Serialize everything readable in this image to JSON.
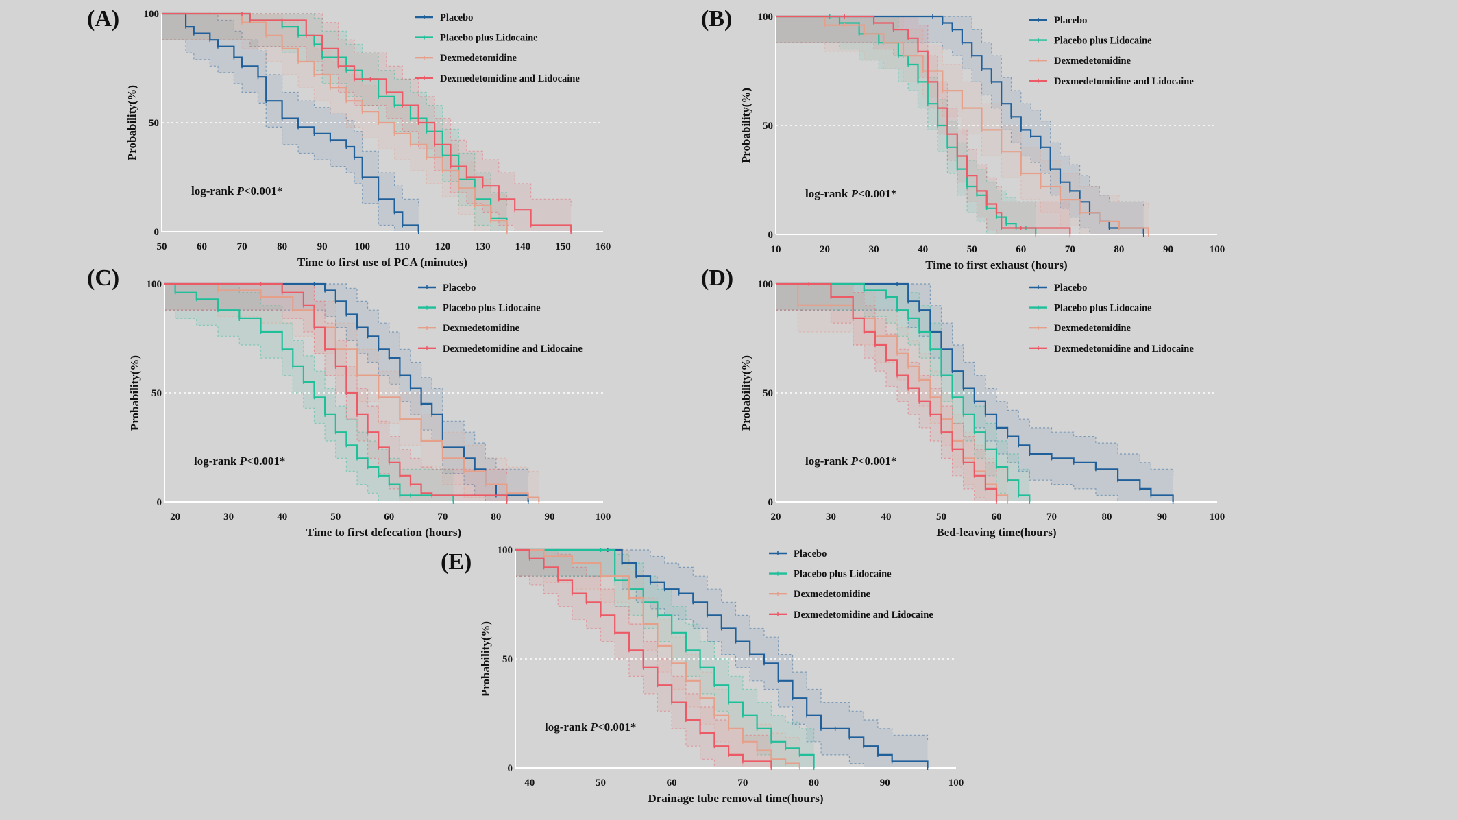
{
  "colors": {
    "background": "#d4d4d4",
    "axis": "#ffffff",
    "grid": "#ffffff",
    "Placebo": "#1f5f9a",
    "Placebo plus Lidocaine": "#1fbf9a",
    "Dexmedetomidine": "#e6a08a",
    "Dexmedetomidine and Lidocaine": "#ec5a66"
  },
  "chart_data": [
    {
      "type": "line",
      "panel": "(A)",
      "xlabel": "Time to first use of PCA (minutes)",
      "ylabel": "Probability(%)",
      "xlim": [
        50,
        160
      ],
      "xticks": [
        50,
        60,
        70,
        80,
        90,
        100,
        110,
        120,
        130,
        140,
        150,
        160
      ],
      "ylim": [
        0,
        100
      ],
      "yticks": [
        0,
        50,
        100
      ],
      "annotation": {
        "prefix": "log-rank ",
        "italic": "P",
        "suffix": "<0.001*"
      },
      "legend": [
        "Placebo",
        "Placebo plus Lidocaine",
        "Dexmedetomidine",
        "Dexmedetomidine and Lidocaine"
      ],
      "series": [
        {
          "name": "Placebo",
          "x": [
            50,
            56,
            58,
            62,
            64,
            68,
            70,
            74,
            76,
            80,
            84,
            88,
            92,
            96,
            98,
            100,
            104,
            108,
            110,
            114
          ],
          "y": [
            100,
            94,
            91,
            88,
            85,
            80,
            76,
            71,
            60,
            52,
            48,
            45,
            42,
            39,
            34,
            25,
            15,
            9,
            3,
            0
          ]
        },
        {
          "name": "Placebo plus Lidocaine",
          "x": [
            50,
            70,
            72,
            80,
            84,
            88,
            90,
            96,
            100,
            104,
            108,
            112,
            116,
            120,
            124,
            128,
            132,
            136
          ],
          "y": [
            100,
            100,
            97,
            94,
            90,
            86,
            80,
            74,
            70,
            62,
            58,
            52,
            46,
            35,
            24,
            15,
            6,
            0
          ]
        },
        {
          "name": "Dexmedetomidine",
          "x": [
            50,
            62,
            70,
            76,
            80,
            84,
            88,
            92,
            96,
            100,
            104,
            108,
            112,
            116,
            120,
            124,
            128,
            132,
            136
          ],
          "y": [
            100,
            100,
            96,
            90,
            84,
            78,
            72,
            66,
            60,
            55,
            50,
            45,
            40,
            34,
            28,
            20,
            12,
            5,
            0
          ]
        },
        {
          "name": "Dexmedetomidine and Lidocaine",
          "x": [
            50,
            70,
            72,
            80,
            86,
            90,
            94,
            98,
            102,
            106,
            110,
            114,
            118,
            122,
            126,
            130,
            134,
            138,
            142,
            152
          ],
          "y": [
            100,
            100,
            97,
            97,
            90,
            84,
            76,
            70,
            70,
            64,
            58,
            50,
            40,
            30,
            25,
            21,
            15,
            10,
            3,
            0
          ]
        }
      ]
    },
    {
      "type": "line",
      "panel": "(B)",
      "xlabel": "Time to first exhaust (hours)",
      "ylabel": "Probability(%)",
      "xlim": [
        10,
        100
      ],
      "xticks": [
        10,
        20,
        30,
        40,
        50,
        60,
        70,
        80,
        90,
        100
      ],
      "ylim": [
        0,
        100
      ],
      "yticks": [
        0,
        50,
        100
      ],
      "annotation": {
        "prefix": "log-rank ",
        "italic": "P",
        "suffix": "<0.001*"
      },
      "legend": [
        "Placebo",
        "Placebo plus Lidocaine",
        "Dexmedetomidine",
        "Dexmedetomidine and Lidocaine"
      ],
      "series": [
        {
          "name": "Placebo",
          "x": [
            10,
            42,
            44,
            46,
            48,
            50,
            52,
            54,
            56,
            58,
            60,
            62,
            64,
            66,
            68,
            70,
            72,
            74,
            76,
            78,
            85
          ],
          "y": [
            100,
            100,
            97,
            94,
            88,
            82,
            76,
            70,
            60,
            54,
            48,
            45,
            40,
            30,
            24,
            20,
            15,
            10,
            6,
            3,
            0
          ]
        },
        {
          "name": "Placebo plus Lidocaine",
          "x": [
            10,
            21,
            23,
            27,
            31,
            35,
            37,
            39,
            41,
            43,
            45,
            47,
            49,
            51,
            53,
            55,
            57,
            59,
            61,
            63
          ],
          "y": [
            100,
            100,
            97,
            92,
            88,
            82,
            78,
            70,
            60,
            50,
            40,
            30,
            22,
            18,
            12,
            8,
            5,
            3,
            3,
            0
          ]
        },
        {
          "name": "Dexmedetomidine",
          "x": [
            10,
            20,
            24,
            28,
            32,
            36,
            40,
            44,
            48,
            52,
            56,
            60,
            64,
            68,
            72,
            76,
            80,
            86
          ],
          "y": [
            100,
            96,
            96,
            92,
            88,
            82,
            75,
            66,
            58,
            48,
            38,
            28,
            22,
            16,
            10,
            6,
            3,
            0
          ]
        },
        {
          "name": "Dexmedetomidine and Lidocaine",
          "x": [
            10,
            24,
            30,
            34,
            37,
            39,
            41,
            43,
            45,
            47,
            49,
            51,
            53,
            55,
            56,
            60,
            70
          ],
          "y": [
            100,
            100,
            97,
            94,
            90,
            84,
            70,
            58,
            46,
            36,
            27,
            20,
            14,
            10,
            3,
            3,
            0
          ]
        }
      ]
    },
    {
      "type": "line",
      "panel": "(C)",
      "xlabel": "Time to first defecation (hours)",
      "ylabel": "Probability(%)",
      "xlim": [
        18,
        100
      ],
      "xticks": [
        20,
        30,
        40,
        50,
        60,
        70,
        80,
        90,
        100
      ],
      "ylim": [
        0,
        100
      ],
      "yticks": [
        0,
        50,
        100
      ],
      "annotation": {
        "prefix": "log-rank ",
        "italic": "P",
        "suffix": "<0.001*"
      },
      "legend": [
        "Placebo",
        "Placebo plus Lidocaine",
        "Dexmedetomidine",
        "Dexmedetomidine and Lidocaine"
      ],
      "series": [
        {
          "name": "Placebo",
          "x": [
            18,
            46,
            48,
            50,
            52,
            54,
            56,
            58,
            60,
            62,
            64,
            66,
            68,
            70,
            74,
            76,
            78,
            80,
            86
          ],
          "y": [
            100,
            100,
            97,
            92,
            86,
            80,
            76,
            70,
            66,
            58,
            52,
            45,
            40,
            25,
            20,
            15,
            8,
            3,
            0
          ]
        },
        {
          "name": "Placebo plus Lidocaine",
          "x": [
            18,
            20,
            24,
            28,
            32,
            36,
            40,
            42,
            44,
            46,
            48,
            50,
            52,
            54,
            56,
            58,
            60,
            62,
            64,
            72
          ],
          "y": [
            100,
            96,
            93,
            88,
            84,
            78,
            70,
            62,
            55,
            48,
            40,
            32,
            26,
            20,
            16,
            12,
            8,
            3,
            3,
            0
          ]
        },
        {
          "name": "Dexmedetomidine",
          "x": [
            18,
            28,
            36,
            42,
            46,
            50,
            54,
            58,
            62,
            66,
            70,
            74,
            78,
            82,
            86,
            88
          ],
          "y": [
            100,
            97,
            94,
            88,
            80,
            70,
            58,
            48,
            38,
            28,
            20,
            14,
            8,
            4,
            2,
            0
          ]
        },
        {
          "name": "Dexmedetomidine and Lidocaine",
          "x": [
            18,
            36,
            40,
            44,
            46,
            48,
            50,
            52,
            54,
            56,
            58,
            60,
            62,
            64,
            66,
            68,
            82
          ],
          "y": [
            100,
            100,
            96,
            90,
            80,
            70,
            62,
            50,
            40,
            32,
            25,
            18,
            12,
            8,
            4,
            3,
            0
          ]
        }
      ]
    },
    {
      "type": "line",
      "panel": "(D)",
      "xlabel": "Bed-leaving time(hours)",
      "ylabel": "Probability(%)",
      "xlim": [
        20,
        100
      ],
      "xticks": [
        20,
        30,
        40,
        50,
        60,
        70,
        80,
        90,
        100
      ],
      "ylim": [
        0,
        100
      ],
      "yticks": [
        0,
        50,
        100
      ],
      "annotation": {
        "prefix": "log-rank ",
        "italic": "P",
        "suffix": "<0.001*"
      },
      "legend": [
        "Placebo",
        "Placebo plus Lidocaine",
        "Dexmedetomidine",
        "Dexmedetomidine and Lidocaine"
      ],
      "series": [
        {
          "name": "Placebo",
          "x": [
            20,
            42,
            44,
            46,
            48,
            50,
            52,
            54,
            56,
            58,
            60,
            62,
            64,
            66,
            70,
            74,
            78,
            82,
            86,
            88,
            92
          ],
          "y": [
            100,
            100,
            92,
            88,
            78,
            70,
            60,
            52,
            46,
            40,
            34,
            30,
            26,
            22,
            20,
            18,
            15,
            10,
            6,
            3,
            0
          ]
        },
        {
          "name": "Placebo plus Lidocaine",
          "x": [
            20,
            36,
            40,
            42,
            44,
            46,
            48,
            50,
            52,
            54,
            56,
            58,
            60,
            62,
            64,
            66
          ],
          "y": [
            100,
            97,
            94,
            88,
            84,
            78,
            70,
            58,
            48,
            40,
            32,
            24,
            16,
            10,
            3,
            0
          ]
        },
        {
          "name": "Dexmedetomidine",
          "x": [
            20,
            24,
            30,
            34,
            38,
            42,
            44,
            46,
            48,
            50,
            52,
            54,
            56,
            58,
            60,
            62
          ],
          "y": [
            100,
            90,
            90,
            84,
            76,
            68,
            62,
            56,
            48,
            38,
            28,
            20,
            14,
            8,
            3,
            0
          ]
        },
        {
          "name": "Dexmedetomidine and Lidocaine",
          "x": [
            20,
            26,
            30,
            34,
            36,
            38,
            40,
            42,
            44,
            46,
            48,
            50,
            52,
            54,
            56,
            58,
            60
          ],
          "y": [
            100,
            100,
            94,
            84,
            78,
            72,
            65,
            58,
            52,
            46,
            40,
            32,
            24,
            18,
            12,
            6,
            0
          ]
        }
      ]
    },
    {
      "type": "line",
      "panel": "(E)",
      "xlabel": "Drainage tube removal time(hours)",
      "ylabel": "Probability(%)",
      "xlim": [
        38,
        100
      ],
      "xticks": [
        40,
        50,
        60,
        70,
        80,
        90,
        100
      ],
      "ylim": [
        0,
        100
      ],
      "yticks": [
        0,
        50,
        100
      ],
      "annotation": {
        "prefix": "log-rank ",
        "italic": "P",
        "suffix": "<0.001*"
      },
      "legend": [
        "Placebo",
        "Placebo plus Lidocaine",
        "Dexmedetomidine",
        "Dexmedetomidine and Lidocaine"
      ],
      "series": [
        {
          "name": "Placebo",
          "x": [
            38,
            51,
            53,
            55,
            57,
            59,
            61,
            63,
            65,
            67,
            69,
            71,
            73,
            75,
            77,
            79,
            81,
            83,
            85,
            87,
            89,
            91,
            96
          ],
          "y": [
            100,
            100,
            94,
            88,
            85,
            82,
            80,
            76,
            70,
            64,
            58,
            52,
            48,
            40,
            32,
            24,
            18,
            18,
            14,
            10,
            6,
            3,
            0
          ]
        },
        {
          "name": "Placebo plus Lidocaine",
          "x": [
            38,
            50,
            52,
            54,
            56,
            58,
            60,
            62,
            64,
            66,
            68,
            70,
            72,
            74,
            76,
            78,
            80
          ],
          "y": [
            100,
            100,
            86,
            82,
            76,
            70,
            62,
            54,
            46,
            38,
            30,
            24,
            18,
            12,
            9,
            6,
            0
          ]
        },
        {
          "name": "Dexmedetomidine",
          "x": [
            38,
            42,
            46,
            50,
            54,
            56,
            58,
            60,
            62,
            64,
            66,
            68,
            70,
            72,
            74,
            76,
            78
          ],
          "y": [
            100,
            97,
            94,
            88,
            78,
            66,
            56,
            48,
            40,
            32,
            24,
            18,
            12,
            8,
            4,
            2,
            0
          ]
        },
        {
          "name": "Dexmedetomidine and Lidocaine",
          "x": [
            38,
            40,
            42,
            44,
            46,
            48,
            50,
            52,
            54,
            56,
            58,
            60,
            62,
            64,
            66,
            68,
            70,
            74
          ],
          "y": [
            100,
            96,
            92,
            86,
            80,
            76,
            70,
            62,
            54,
            46,
            38,
            30,
            22,
            16,
            10,
            6,
            3,
            0
          ]
        }
      ]
    }
  ]
}
